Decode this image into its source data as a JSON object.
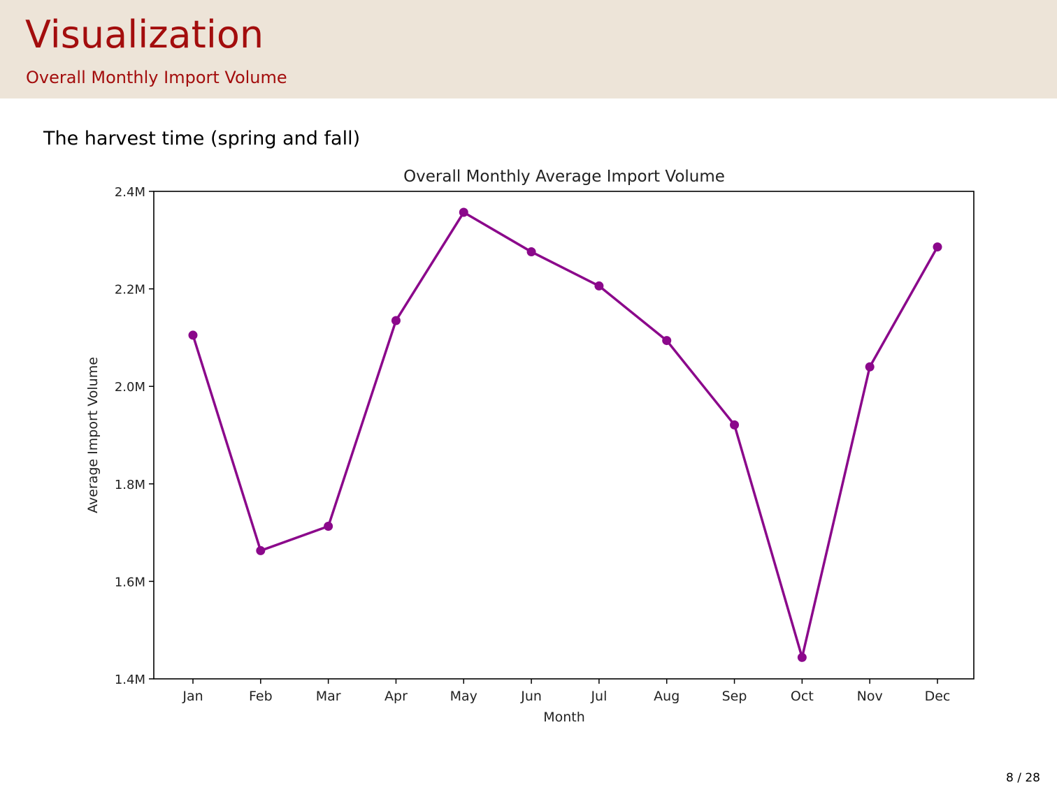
{
  "slide": {
    "title": "Visualization",
    "subtitle": "Overall Monthly Import Volume",
    "body_text": "The harvest time (spring and fall)",
    "page_number": "8 / 28"
  },
  "colors": {
    "header_bg": "#ede4d8",
    "title": "#a30d0d",
    "series": "#8b088b"
  },
  "chart_data": {
    "type": "line",
    "title": "Overall Monthly Average Import Volume",
    "xlabel": "Month",
    "ylabel": "Average Import Volume",
    "categories": [
      "Jan",
      "Feb",
      "Mar",
      "Apr",
      "May",
      "Jun",
      "Jul",
      "Aug",
      "Sep",
      "Oct",
      "Nov",
      "Dec"
    ],
    "values": [
      2105000,
      1663000,
      1713000,
      2135000,
      2357000,
      2276000,
      2206000,
      2094000,
      1921000,
      1444000,
      2040000,
      2286000
    ],
    "ylim": [
      1400000,
      2400000
    ],
    "yticks": [
      1400000,
      1600000,
      1800000,
      2000000,
      2200000,
      2400000
    ],
    "ytick_labels": [
      "1.4M",
      "1.6M",
      "1.8M",
      "2.0M",
      "2.2M",
      "2.4M"
    ],
    "marker": "circle",
    "grid": false,
    "legend": false
  }
}
